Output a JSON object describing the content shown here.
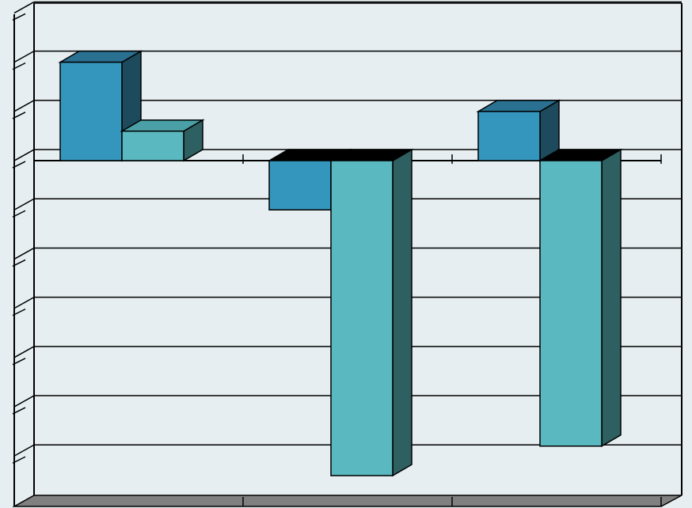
{
  "chart_data": {
    "type": "bar",
    "style": "3d-clustered",
    "categories": [
      "",
      "",
      ""
    ],
    "series": [
      {
        "values": [
          2.0,
          -1.0,
          1.0
        ],
        "color": "#3596bd",
        "side_color": "#1d4a5c",
        "top_color": "#2a7090"
      },
      {
        "values": [
          0.6,
          -6.4,
          -5.8
        ],
        "color": "#5ab8c0",
        "side_color": "#2e5f61",
        "top_color": "#4aa0a6"
      }
    ],
    "ylim": [
      -6.8,
      3.2
    ],
    "gridlines": [
      3,
      2,
      1,
      0,
      -1,
      -2,
      -3,
      -4,
      -5,
      -6
    ],
    "grid": true,
    "legend": "none",
    "colors": {
      "background": "#e6eef1",
      "floor": "#808080",
      "axis": "#000000"
    }
  }
}
